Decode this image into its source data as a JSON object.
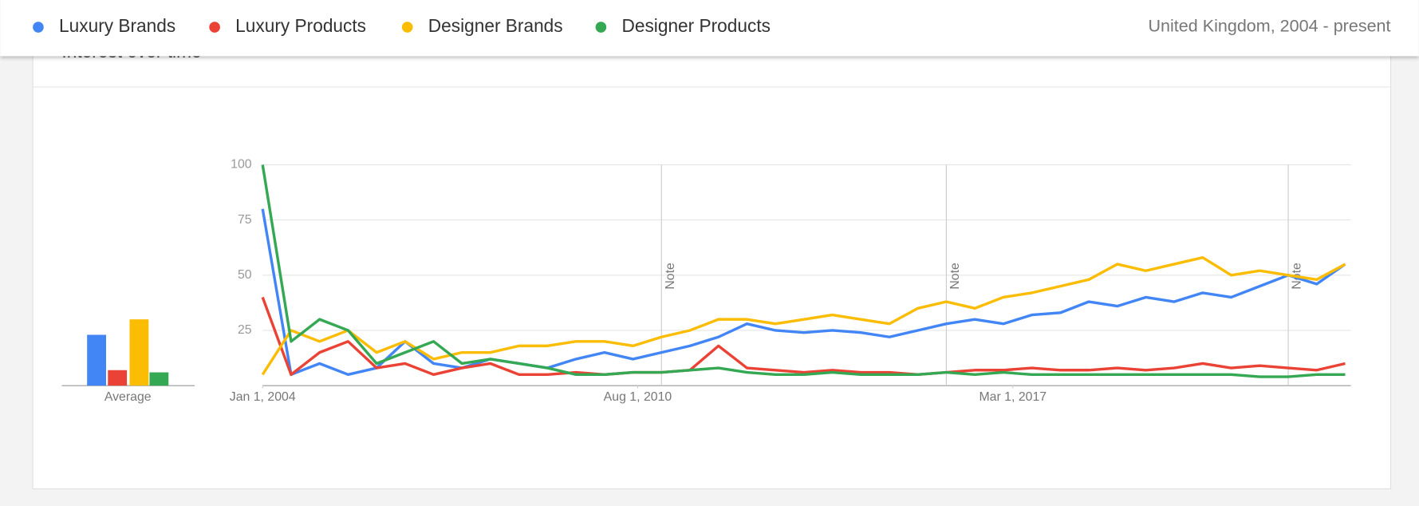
{
  "header": {
    "legend": [
      "Luxury Brands",
      "Luxury Products",
      "Designer Brands",
      "Designer Products"
    ],
    "region": "United Kingdom, 2004 - present"
  },
  "card": {
    "title": "Interest over time",
    "average_label": "Average"
  },
  "chart_data": {
    "type": "line",
    "x": [
      2004.0,
      2004.5,
      2005.0,
      2005.5,
      2006.0,
      2006.5,
      2007.0,
      2007.5,
      2008.0,
      2008.5,
      2009.0,
      2009.5,
      2010.0,
      2010.5,
      2011.0,
      2011.5,
      2012.0,
      2012.5,
      2013.0,
      2013.5,
      2014.0,
      2014.5,
      2015.0,
      2015.5,
      2016.0,
      2016.5,
      2017.0,
      2017.5,
      2018.0,
      2018.5,
      2019.0,
      2019.5,
      2020.0,
      2020.5,
      2021.0,
      2021.5,
      2022.0,
      2022.5,
      2023.0
    ],
    "xlim": [
      2004,
      2023.1
    ],
    "xticks": [
      {
        "value": 2004,
        "label": "Jan 1, 2004"
      },
      {
        "value": 2010.583,
        "label": "Aug 1, 2010"
      },
      {
        "value": 2017.167,
        "label": "Mar 1, 2017"
      }
    ],
    "ylim": [
      0,
      100
    ],
    "yticks": [
      25,
      50,
      75,
      100
    ],
    "grid": true,
    "annotations": [
      {
        "x": 2011.0,
        "label": "Note"
      },
      {
        "x": 2016.0,
        "label": "Note"
      },
      {
        "x": 2022.0,
        "label": "Note"
      }
    ],
    "series": [
      {
        "name": "Luxury Brands",
        "color": "#4285f4",
        "average": 23,
        "values": [
          80,
          5,
          10,
          5,
          8,
          20,
          10,
          8,
          12,
          10,
          8,
          12,
          15,
          12,
          15,
          18,
          22,
          28,
          25,
          24,
          25,
          24,
          22,
          25,
          28,
          30,
          28,
          32,
          33,
          38,
          36,
          40,
          38,
          42,
          40,
          45,
          50,
          46,
          55
        ]
      },
      {
        "name": "Luxury Products",
        "color": "#ea4335",
        "average": 7,
        "values": [
          40,
          5,
          15,
          20,
          8,
          10,
          5,
          8,
          10,
          5,
          5,
          6,
          5,
          6,
          6,
          7,
          18,
          8,
          7,
          6,
          7,
          6,
          6,
          5,
          6,
          7,
          7,
          8,
          7,
          7,
          8,
          7,
          8,
          10,
          8,
          9,
          8,
          7,
          10
        ]
      },
      {
        "name": "Designer Brands",
        "color": "#fbbc04",
        "average": 30,
        "values": [
          5,
          25,
          20,
          25,
          15,
          20,
          12,
          15,
          15,
          18,
          18,
          20,
          20,
          18,
          22,
          25,
          30,
          30,
          28,
          30,
          32,
          30,
          28,
          35,
          38,
          35,
          40,
          42,
          45,
          48,
          55,
          52,
          55,
          58,
          50,
          52,
          50,
          48,
          55
        ]
      },
      {
        "name": "Designer Products",
        "color": "#34a853",
        "average": 6,
        "values": [
          100,
          20,
          30,
          25,
          10,
          15,
          20,
          10,
          12,
          10,
          8,
          5,
          5,
          6,
          6,
          7,
          8,
          6,
          5,
          5,
          6,
          5,
          5,
          5,
          6,
          5,
          6,
          5,
          5,
          5,
          5,
          5,
          5,
          5,
          5,
          4,
          4,
          5,
          5
        ]
      }
    ]
  }
}
